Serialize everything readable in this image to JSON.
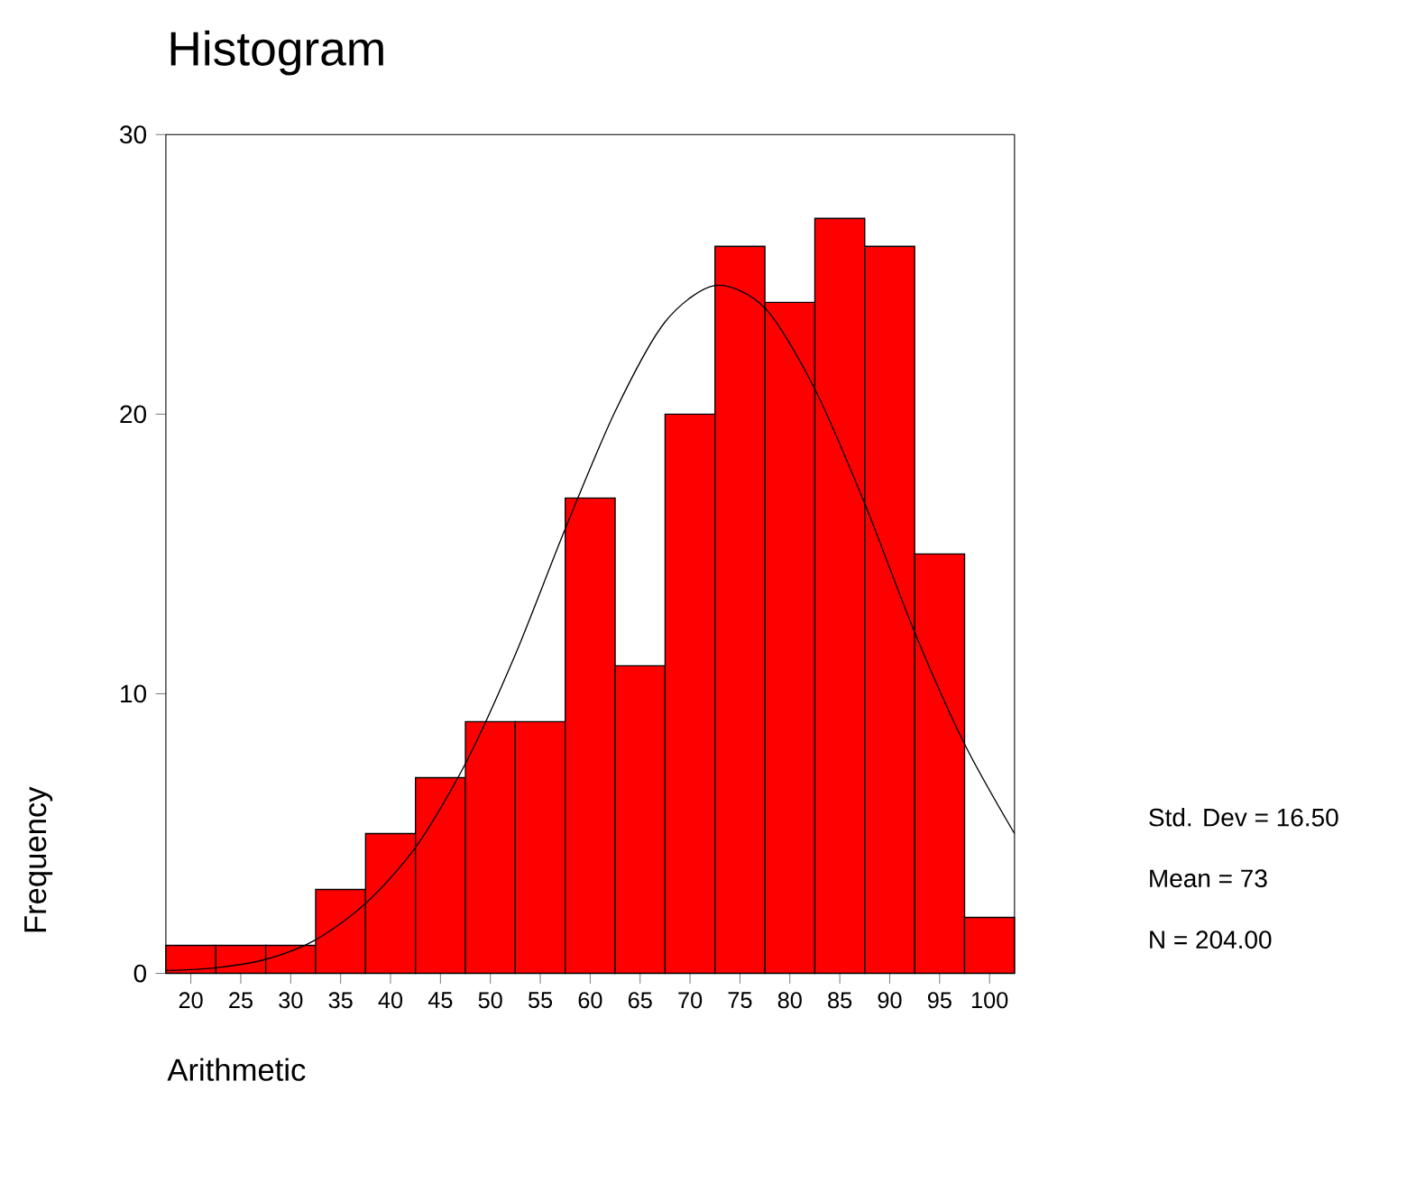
{
  "chart_data": {
    "type": "histogram",
    "title": "Histogram",
    "xlabel": "Arithmetic",
    "ylabel": "Frequency",
    "series": [
      {
        "type": "histogram",
        "bins": [
          17.5,
          22.5,
          27.5,
          32.5,
          37.5,
          42.5,
          47.5,
          52.5,
          57.5,
          62.5,
          67.5,
          72.5,
          77.5,
          82.5,
          87.5,
          92.5,
          97.5,
          102.5
        ],
        "values": [
          1,
          1,
          1,
          3,
          5,
          7,
          9,
          9,
          17,
          11,
          20,
          26,
          24,
          27,
          26,
          15,
          2
        ],
        "color": "#ff0000"
      },
      {
        "type": "line",
        "x": [
          17.5,
          22.5,
          27.5,
          32.5,
          37.5,
          42.5,
          47.5,
          52.5,
          57.5,
          62.5,
          67.5,
          72.5,
          77.5,
          82.5,
          87.5,
          92.5,
          97.5,
          102.5
        ],
        "values": [
          0.1,
          0.2,
          0.5,
          1.2,
          2.5,
          4.5,
          7.5,
          11.4,
          15.9,
          20.1,
          23.3,
          24.6,
          23.8,
          20.9,
          16.8,
          12.2,
          8.2,
          5.0
        ],
        "color": "#000000"
      }
    ],
    "xlim": [
      17.5,
      102.5
    ],
    "ylim": [
      0,
      30
    ],
    "xticks": [
      20,
      25,
      30,
      35,
      40,
      45,
      50,
      55,
      60,
      65,
      70,
      75,
      80,
      85,
      90,
      95,
      100
    ],
    "yticks": [
      0,
      10,
      20,
      30
    ],
    "grid": false,
    "annotations": [
      "Std. Dev = 16.50",
      "Mean = 73",
      "N = 204.00"
    ]
  }
}
